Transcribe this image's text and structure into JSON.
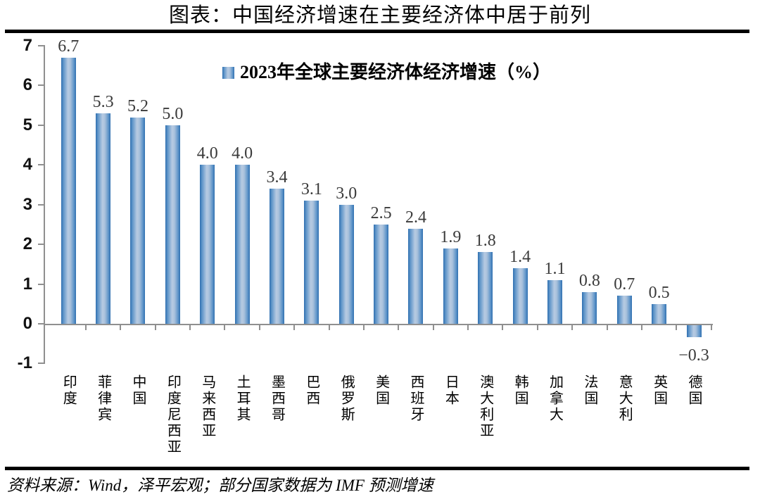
{
  "header": {
    "title": "图表：中国经济增速在主要经济体中居于前列"
  },
  "chart_data": {
    "type": "bar",
    "legend": "2023年全球主要经济体经济增速（%）",
    "legend_position": "top-center",
    "grid": false,
    "categories": [
      "印度",
      "菲律宾",
      "中国",
      "印度尼西亚",
      "马来西亚",
      "土耳其",
      "墨西哥",
      "巴西",
      "俄罗斯",
      "美国",
      "西班牙",
      "日本",
      "澳大利亚",
      "韩国",
      "加拿大",
      "法国",
      "意大利",
      "英国",
      "德国"
    ],
    "values": [
      6.7,
      5.3,
      5.2,
      5.0,
      4.0,
      4.0,
      3.4,
      3.1,
      3.0,
      2.5,
      2.4,
      1.9,
      1.8,
      1.4,
      1.1,
      0.8,
      0.7,
      0.5,
      -0.3
    ],
    "value_labels": [
      "6.7",
      "5.3",
      "5.2",
      "5.0",
      "4.0",
      "4.0",
      "3.4",
      "3.1",
      "3.0",
      "2.5",
      "2.4",
      "1.9",
      "1.8",
      "1.4",
      "1.1",
      "0.8",
      "0.7",
      "0.5",
      "−0.3"
    ],
    "ylim": [
      -1,
      7
    ],
    "yticks": [
      7,
      6,
      5,
      4,
      3,
      2,
      1,
      0,
      -1
    ],
    "ytick_labels": [
      "7",
      "6",
      "5",
      "4",
      "3",
      "2",
      "1",
      "0",
      "-1"
    ],
    "xlabel": "",
    "ylabel": ""
  },
  "footer": {
    "source_note": "资料来源：Wind，泽平宏观；部分国家数据为 IMF 预测增速"
  },
  "colors": {
    "bar_edge": "#2f6fb0",
    "bar_mid": "#b7cbe2",
    "axis_line": "#8f8f8f",
    "value_label": "#3a3a3a",
    "text": "#000000"
  }
}
